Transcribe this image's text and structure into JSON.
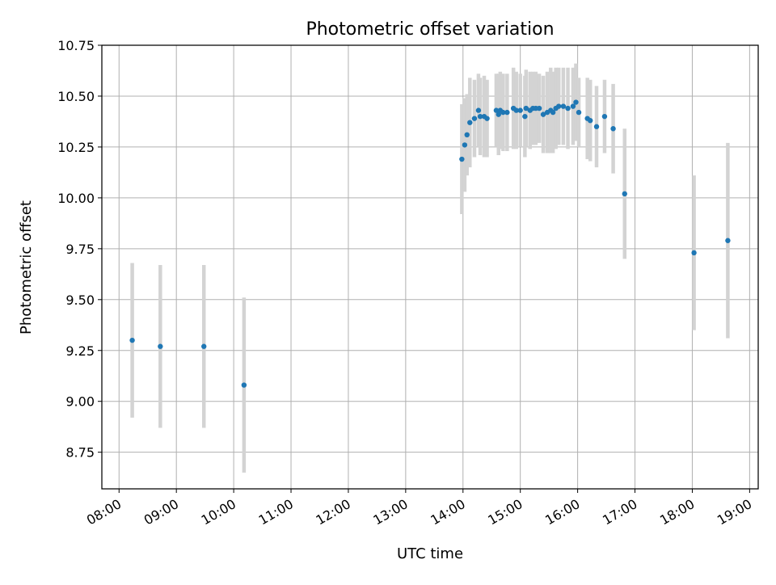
{
  "chart_data": {
    "type": "scatter",
    "title": "Photometric offset variation",
    "xlabel": "UTC time",
    "ylabel": "Photometric offset",
    "xlim": [
      7.7,
      19.15
    ],
    "ylim": [
      8.57,
      10.75
    ],
    "x_ticks": [
      8,
      9,
      10,
      11,
      12,
      13,
      14,
      15,
      16,
      17,
      18,
      19
    ],
    "x_tick_labels": [
      "08:00",
      "09:00",
      "10:00",
      "11:00",
      "12:00",
      "13:00",
      "14:00",
      "15:00",
      "16:00",
      "17:00",
      "18:00",
      "19:00"
    ],
    "y_ticks": [
      8.75,
      9.0,
      9.25,
      9.5,
      9.75,
      10.0,
      10.25,
      10.5,
      10.75
    ],
    "y_tick_labels": [
      "8.75",
      "9.00",
      "9.25",
      "9.50",
      "9.75",
      "10.00",
      "10.25",
      "10.50",
      "10.75"
    ],
    "grid": true,
    "colors": {
      "points": "#1f77b4",
      "error_bars": "#d3d3d3",
      "grid": "#b0b0b0"
    },
    "series": [
      {
        "x": [
          8.23,
          8.72,
          9.48,
          10.18,
          13.98,
          14.03,
          14.07,
          14.12,
          14.2,
          14.27,
          14.3,
          14.37,
          14.42,
          14.58,
          14.62,
          14.65,
          14.7,
          14.77,
          14.88,
          14.93,
          15.0,
          15.08,
          15.1,
          15.17,
          15.22,
          15.27,
          15.33,
          15.4,
          15.47,
          15.53,
          15.57,
          15.62,
          15.67,
          15.75,
          15.83,
          15.92,
          15.97,
          16.02,
          16.17,
          16.22,
          16.33,
          16.47,
          16.62,
          16.82,
          18.03,
          18.62
        ],
        "y": [
          9.3,
          9.27,
          9.27,
          9.08,
          10.19,
          10.26,
          10.31,
          10.37,
          10.39,
          10.43,
          10.4,
          10.4,
          10.39,
          10.43,
          10.41,
          10.43,
          10.42,
          10.42,
          10.44,
          10.43,
          10.43,
          10.4,
          10.44,
          10.43,
          10.44,
          10.44,
          10.44,
          10.41,
          10.42,
          10.43,
          10.42,
          10.44,
          10.45,
          10.45,
          10.44,
          10.45,
          10.47,
          10.42,
          10.39,
          10.38,
          10.35,
          10.4,
          10.34,
          10.02,
          9.73,
          9.79
        ],
        "yerr": [
          0.38,
          0.4,
          0.4,
          0.43,
          0.27,
          0.23,
          0.2,
          0.22,
          0.19,
          0.18,
          0.19,
          0.2,
          0.19,
          0.18,
          0.2,
          0.19,
          0.19,
          0.19,
          0.2,
          0.19,
          0.18,
          0.2,
          0.19,
          0.19,
          0.18,
          0.18,
          0.17,
          0.19,
          0.2,
          0.21,
          0.2,
          0.2,
          0.19,
          0.19,
          0.2,
          0.19,
          0.19,
          0.17,
          0.2,
          0.2,
          0.2,
          0.18,
          0.22,
          0.32,
          0.38,
          0.48
        ]
      }
    ]
  }
}
